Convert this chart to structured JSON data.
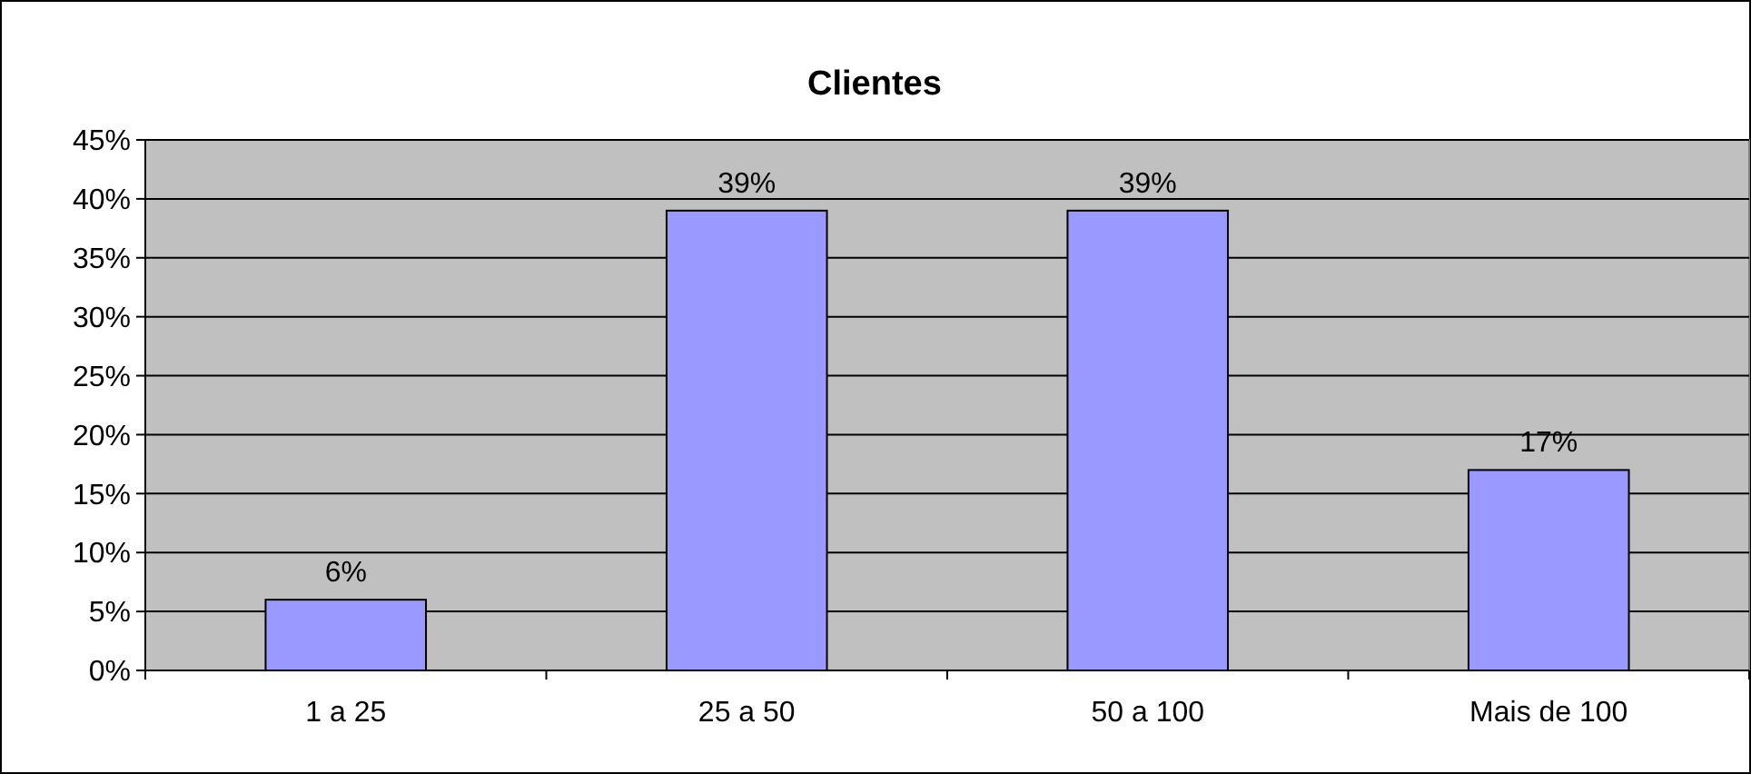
{
  "chart_data": {
    "type": "bar",
    "title": "Clientes",
    "categories": [
      "1 a 25",
      "25 a 50",
      "50 a 100",
      "Mais de 100"
    ],
    "values": [
      6,
      39,
      39,
      17
    ],
    "value_labels": [
      "6%",
      "39%",
      "39%",
      "17%"
    ],
    "color": "#9999ff",
    "ylim": [
      0,
      45
    ],
    "yticks": [
      {
        "value": 0,
        "label": "0%"
      },
      {
        "value": 5,
        "label": "5%"
      },
      {
        "value": 10,
        "label": "10%"
      },
      {
        "value": 15,
        "label": "15%"
      },
      {
        "value": 20,
        "label": "20%"
      },
      {
        "value": 25,
        "label": "25%"
      },
      {
        "value": 30,
        "label": "30%"
      },
      {
        "value": 35,
        "label": "35%"
      },
      {
        "value": 40,
        "label": "40%"
      },
      {
        "value": 45,
        "label": "45%"
      }
    ],
    "grid": "y"
  }
}
